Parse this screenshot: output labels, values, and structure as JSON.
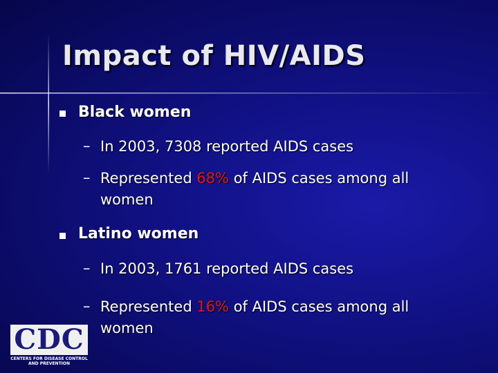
{
  "title": "Impact of HIV/AIDS",
  "bullets": [
    {
      "text": "Black women",
      "items": [
        {
          "text": "In 2003, 7308 reported AIDS cases"
        },
        {
          "before": "Represented ",
          "highlight": "68%",
          "after": " of AIDS cases among all women"
        }
      ]
    },
    {
      "text": "Latino women",
      "items": [
        {
          "text": "In 2003, 1761 reported AIDS cases"
        },
        {
          "before": "Represented ",
          "highlight": "16%",
          "after": " of AIDS cases among all women"
        }
      ]
    }
  ],
  "logo": {
    "name": "CDC",
    "subtitle": "CENTERS FOR DISEASE CONTROL AND PREVENTION"
  }
}
